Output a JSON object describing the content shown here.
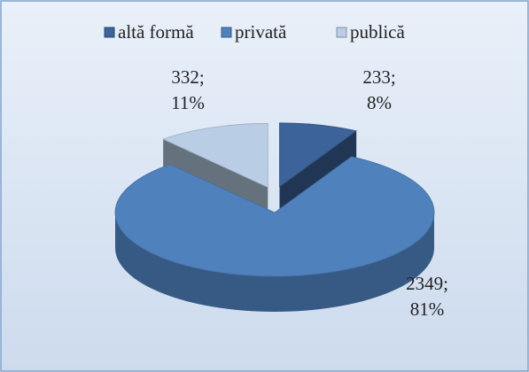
{
  "chart_data": {
    "type": "pie",
    "categories": [
      "altă formă",
      "privată",
      "publică"
    ],
    "values": [
      233,
      2349,
      332
    ],
    "value_labels": [
      "233;",
      "2349;",
      "332;"
    ],
    "percentages": [
      8,
      81,
      11
    ],
    "percentage_labels": [
      "8%",
      "81%",
      "11%"
    ],
    "colors": [
      "#3c639a",
      "#4f81bd",
      "#b9cde5"
    ],
    "legend": "top"
  }
}
